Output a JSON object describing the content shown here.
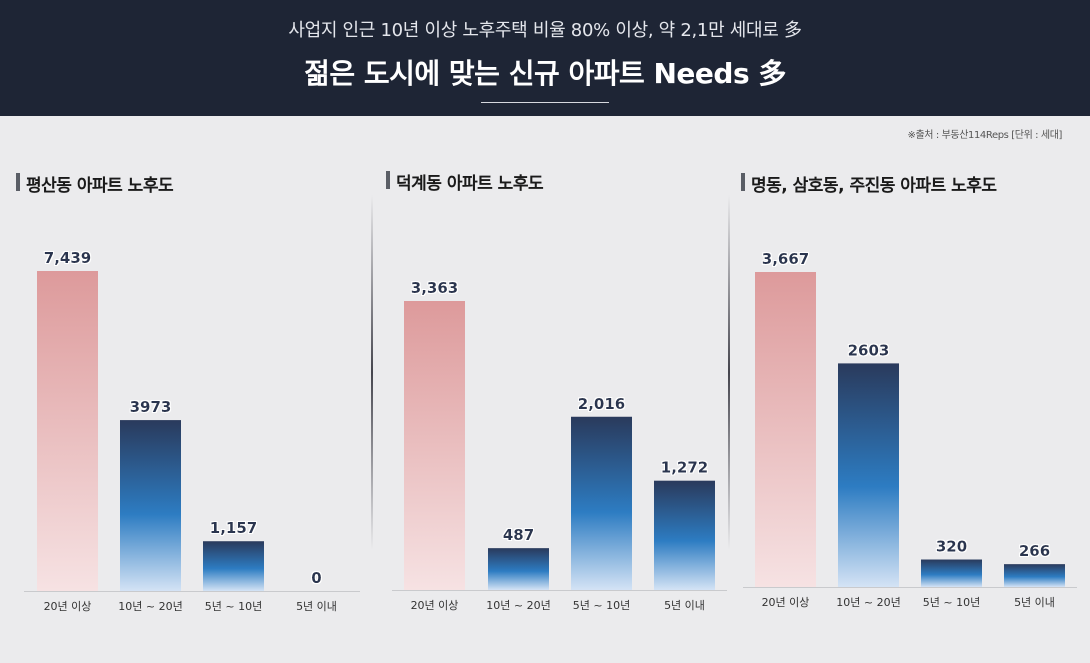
{
  "header": {
    "subtitle": "사업지 인근 10년 이상 노후주택 비율 80% 이상, 약 2,1만 세대로 多",
    "title": "젊은 도시에 맞는 신규 아파트 Needs 多"
  },
  "source": "※출처 : 부동산114Reps [단위 : 세대]",
  "colors": {
    "header_bg": "#1e2535",
    "pink_top": "#dd9a9b",
    "pink_bottom": "#f6e2e3",
    "navy_top": "#2a3a5c",
    "blue_mid": "#2d7cc2",
    "blue_bottom": "#d4e3f5"
  },
  "chart_data": [
    {
      "type": "bar",
      "title": "평산동 아파트 노후도",
      "categories": [
        "20년 이상",
        "10년 ~ 20년",
        "5년 ~ 10년",
        "5년 이내"
      ],
      "values": [
        7439,
        3973,
        1157,
        0
      ],
      "labels": [
        "7,439",
        "3973",
        "1,157",
        "0"
      ],
      "ylim": [
        0,
        7439
      ]
    },
    {
      "type": "bar",
      "title": "덕계동 아파트 노후도",
      "categories": [
        "20년 이상",
        "10년 ~ 20년",
        "5년 ~ 10년",
        "5년 이내"
      ],
      "values": [
        3363,
        487,
        2016,
        1272
      ],
      "labels": [
        "3,363",
        "487",
        "2,016",
        "1,272"
      ],
      "ylim": [
        0,
        3363
      ]
    },
    {
      "type": "bar",
      "title": "명동, 삼호동, 주진동 아파트 노후도",
      "categories": [
        "20년 이상",
        "10년 ~ 20년",
        "5년 ~ 10년",
        "5년 이내"
      ],
      "values": [
        3667,
        2603,
        320,
        266
      ],
      "labels": [
        "3,667",
        "2603",
        "320",
        "266"
      ],
      "ylim": [
        0,
        3667
      ]
    }
  ]
}
